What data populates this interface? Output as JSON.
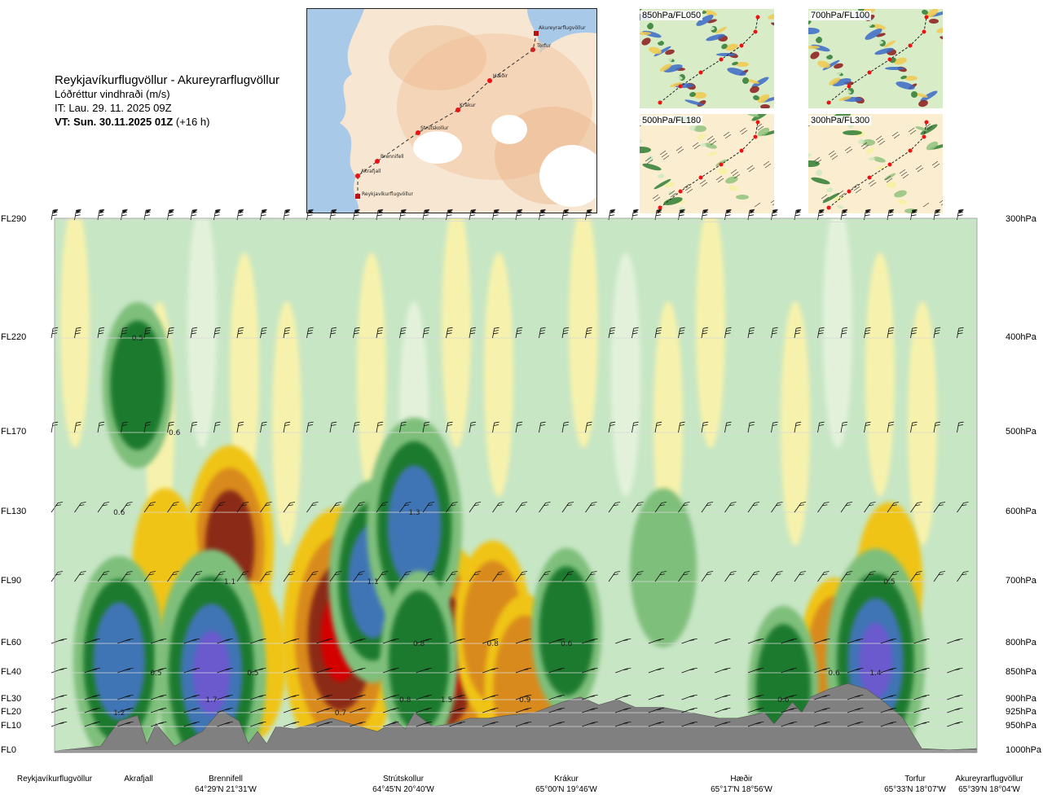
{
  "title": {
    "route": "Reykjavíkurflugvöllur - Akureyrarflugvöllur",
    "quantity": "Lóðréttur vindhraði (m/s)",
    "init": "IT: Lau. 29. 11. 2025 09Z",
    "valid_bold": "VT: Sun. 30.11.2025 01Z",
    "valid_lead": "(+16 h)"
  },
  "thumbnails": [
    {
      "label": "850hPa/FL050"
    },
    {
      "label": "700hPa/FL100"
    },
    {
      "label": "500hPa/FL180"
    },
    {
      "label": "300hPa/FL300"
    }
  ],
  "map_labels": [
    "Akureyrarflugvöllur",
    "Torfur",
    "Hæðir",
    "Krákur",
    "Strútskollur",
    "Brennifell",
    "Akrafjall",
    "Reykjavíkurflugvöllur"
  ],
  "colors": {
    "up_weak": "#c7e6c4",
    "up_mid": "#7fbf7b",
    "up_strong": "#1b7a2e",
    "up_vstrong": "#3f74b5",
    "up_max": "#6a5acd",
    "down_weak": "#fff4a8",
    "down_mid": "#f0c419",
    "down_strong": "#d98a1c",
    "down_vstrong": "#8b2a12",
    "down_max": "#d40000",
    "terrain": "#808080"
  },
  "chart_data": {
    "type": "heatmap",
    "title": "Reykjavíkurflugvöllur - Akureyrarflugvöllur",
    "variable": "Lóðréttur vindhraði (m/s)",
    "y_left_labels": [
      "FL290",
      "FL220",
      "FL170",
      "FL130",
      "FL90",
      "FL60",
      "FL40",
      "FL30",
      "FL20",
      "FL10",
      "FL0"
    ],
    "y_right_labels": [
      "300hPa",
      "400hPa",
      "500hPa",
      "600hPa",
      "700hPa",
      "800hPa",
      "850hPa",
      "900hPa",
      "925hPa",
      "950hPa",
      "1000hPa"
    ],
    "pressure_levels_hPa": [
      300,
      400,
      500,
      600,
      700,
      800,
      850,
      900,
      925,
      950,
      1000
    ],
    "route_distance_range": [
      0,
      1
    ],
    "x_waypoints": [
      {
        "name": "Reykjavíkurflugvöllur",
        "coord": "",
        "pos": 0.0
      },
      {
        "name": "Akrafjall",
        "coord": "",
        "pos": 0.09
      },
      {
        "name": "Brennifell",
        "coord": "64°29'N 21°31'W",
        "pos": 0.19
      },
      {
        "name": "Strútskollur",
        "coord": "64°45'N 20°40'W",
        "pos": 0.38
      },
      {
        "name": "Krákur",
        "coord": "65°00'N 19°46'W",
        "pos": 0.57
      },
      {
        "name": "Hæðir",
        "coord": "65°17'N 18°56'W",
        "pos": 0.75
      },
      {
        "name": "Torfur",
        "coord": "65°33'N 18°07'W",
        "pos": 0.93
      },
      {
        "name": "Akureyrarflugvöllur",
        "coord": "65°39'N 18°04'W",
        "pos": 1.0
      }
    ],
    "cell_labels": [
      {
        "text": "0.5",
        "x": 0.09,
        "p": 400
      },
      {
        "text": "0.6",
        "x": 0.13,
        "p": 500
      },
      {
        "text": "0.6",
        "x": 0.07,
        "p": 600
      },
      {
        "text": "1.1",
        "x": 0.19,
        "p": 700
      },
      {
        "text": "1.3",
        "x": 0.39,
        "p": 600
      },
      {
        "text": "1.1",
        "x": 0.345,
        "p": 700
      },
      {
        "text": "0.5",
        "x": 0.11,
        "p": 850
      },
      {
        "text": "0.5",
        "x": 0.215,
        "p": 850
      },
      {
        "text": "1.7",
        "x": 0.17,
        "p": 900
      },
      {
        "text": "1.2",
        "x": 0.07,
        "p": 925
      },
      {
        "text": "0.8",
        "x": 0.395,
        "p": 800
      },
      {
        "text": "0.8",
        "x": 0.38,
        "p": 900
      },
      {
        "text": "1.5",
        "x": 0.425,
        "p": 900
      },
      {
        "text": "0.7",
        "x": 0.31,
        "p": 925
      },
      {
        "text": "0.8",
        "x": 0.475,
        "p": 800
      },
      {
        "text": "0.9",
        "x": 0.51,
        "p": 900
      },
      {
        "text": "0.6",
        "x": 0.555,
        "p": 800
      },
      {
        "text": "0.6",
        "x": 0.79,
        "p": 900
      },
      {
        "text": "0.6",
        "x": 0.845,
        "p": 850
      },
      {
        "text": "1.4",
        "x": 0.89,
        "p": 850
      },
      {
        "text": "0.5",
        "x": 0.905,
        "p": 700
      }
    ],
    "updraft_cores": [
      {
        "x": 0.09,
        "p": 450,
        "intensity": 0.6
      },
      {
        "x": 0.07,
        "p": 830,
        "intensity": 1.2
      },
      {
        "x": 0.17,
        "p": 850,
        "intensity": 1.7
      },
      {
        "x": 0.345,
        "p": 700,
        "intensity": 1.1
      },
      {
        "x": 0.39,
        "p": 620,
        "intensity": 1.3
      },
      {
        "x": 0.395,
        "p": 830,
        "intensity": 0.8
      },
      {
        "x": 0.555,
        "p": 780,
        "intensity": 0.6
      },
      {
        "x": 0.66,
        "p": 680,
        "intensity": 0.5
      },
      {
        "x": 0.79,
        "p": 880,
        "intensity": 0.6
      },
      {
        "x": 0.89,
        "p": 830,
        "intensity": 1.4
      }
    ],
    "downdraft_cores": [
      {
        "x": 0.19,
        "p": 650,
        "intensity": -1.1
      },
      {
        "x": 0.31,
        "p": 790,
        "intensity": -1.9
      },
      {
        "x": 0.425,
        "p": 830,
        "intensity": -1.5
      },
      {
        "x": 0.475,
        "p": 780,
        "intensity": -0.8
      },
      {
        "x": 0.51,
        "p": 880,
        "intensity": -0.9
      },
      {
        "x": 0.215,
        "p": 830,
        "intensity": -0.5
      },
      {
        "x": 0.12,
        "p": 680,
        "intensity": -0.5
      },
      {
        "x": 0.845,
        "p": 830,
        "intensity": -0.6
      },
      {
        "x": 0.905,
        "p": 700,
        "intensity": -0.5
      }
    ],
    "contour_levels_m_s": [
      -1.5,
      -1.0,
      -0.6,
      -0.3,
      -0.1,
      0.1,
      0.3,
      0.6,
      1.0,
      1.5
    ],
    "terrain_surface_hPa": [
      {
        "x": 0.0,
        "p": 1000
      },
      {
        "x": 0.05,
        "p": 990
      },
      {
        "x": 0.07,
        "p": 940
      },
      {
        "x": 0.09,
        "p": 930
      },
      {
        "x": 0.1,
        "p": 985
      },
      {
        "x": 0.11,
        "p": 945
      },
      {
        "x": 0.13,
        "p": 990
      },
      {
        "x": 0.16,
        "p": 960
      },
      {
        "x": 0.18,
        "p": 920
      },
      {
        "x": 0.2,
        "p": 940
      },
      {
        "x": 0.21,
        "p": 985
      },
      {
        "x": 0.22,
        "p": 960
      },
      {
        "x": 0.23,
        "p": 985
      },
      {
        "x": 0.24,
        "p": 950
      },
      {
        "x": 0.26,
        "p": 955
      },
      {
        "x": 0.28,
        "p": 945
      },
      {
        "x": 0.3,
        "p": 935
      },
      {
        "x": 0.33,
        "p": 950
      },
      {
        "x": 0.35,
        "p": 960
      },
      {
        "x": 0.37,
        "p": 940
      },
      {
        "x": 0.38,
        "p": 955
      },
      {
        "x": 0.39,
        "p": 925
      },
      {
        "x": 0.41,
        "p": 950
      },
      {
        "x": 0.43,
        "p": 945
      },
      {
        "x": 0.45,
        "p": 935
      },
      {
        "x": 0.47,
        "p": 935
      },
      {
        "x": 0.49,
        "p": 930
      },
      {
        "x": 0.52,
        "p": 925
      },
      {
        "x": 0.55,
        "p": 905
      },
      {
        "x": 0.57,
        "p": 895
      },
      {
        "x": 0.59,
        "p": 910
      },
      {
        "x": 0.61,
        "p": 900
      },
      {
        "x": 0.63,
        "p": 915
      },
      {
        "x": 0.66,
        "p": 915
      },
      {
        "x": 0.69,
        "p": 925
      },
      {
        "x": 0.72,
        "p": 935
      },
      {
        "x": 0.74,
        "p": 935
      },
      {
        "x": 0.77,
        "p": 925
      },
      {
        "x": 0.78,
        "p": 945
      },
      {
        "x": 0.8,
        "p": 905
      },
      {
        "x": 0.81,
        "p": 925
      },
      {
        "x": 0.82,
        "p": 895
      },
      {
        "x": 0.84,
        "p": 880
      },
      {
        "x": 0.86,
        "p": 870
      },
      {
        "x": 0.88,
        "p": 880
      },
      {
        "x": 0.9,
        "p": 905
      },
      {
        "x": 0.92,
        "p": 935
      },
      {
        "x": 0.94,
        "p": 995
      },
      {
        "x": 0.97,
        "p": 998
      },
      {
        "x": 1.0,
        "p": 995
      }
    ],
    "wind_barb_levels_hPa": [
      300,
      400,
      500,
      600,
      700,
      800,
      850,
      900,
      925,
      950
    ]
  }
}
